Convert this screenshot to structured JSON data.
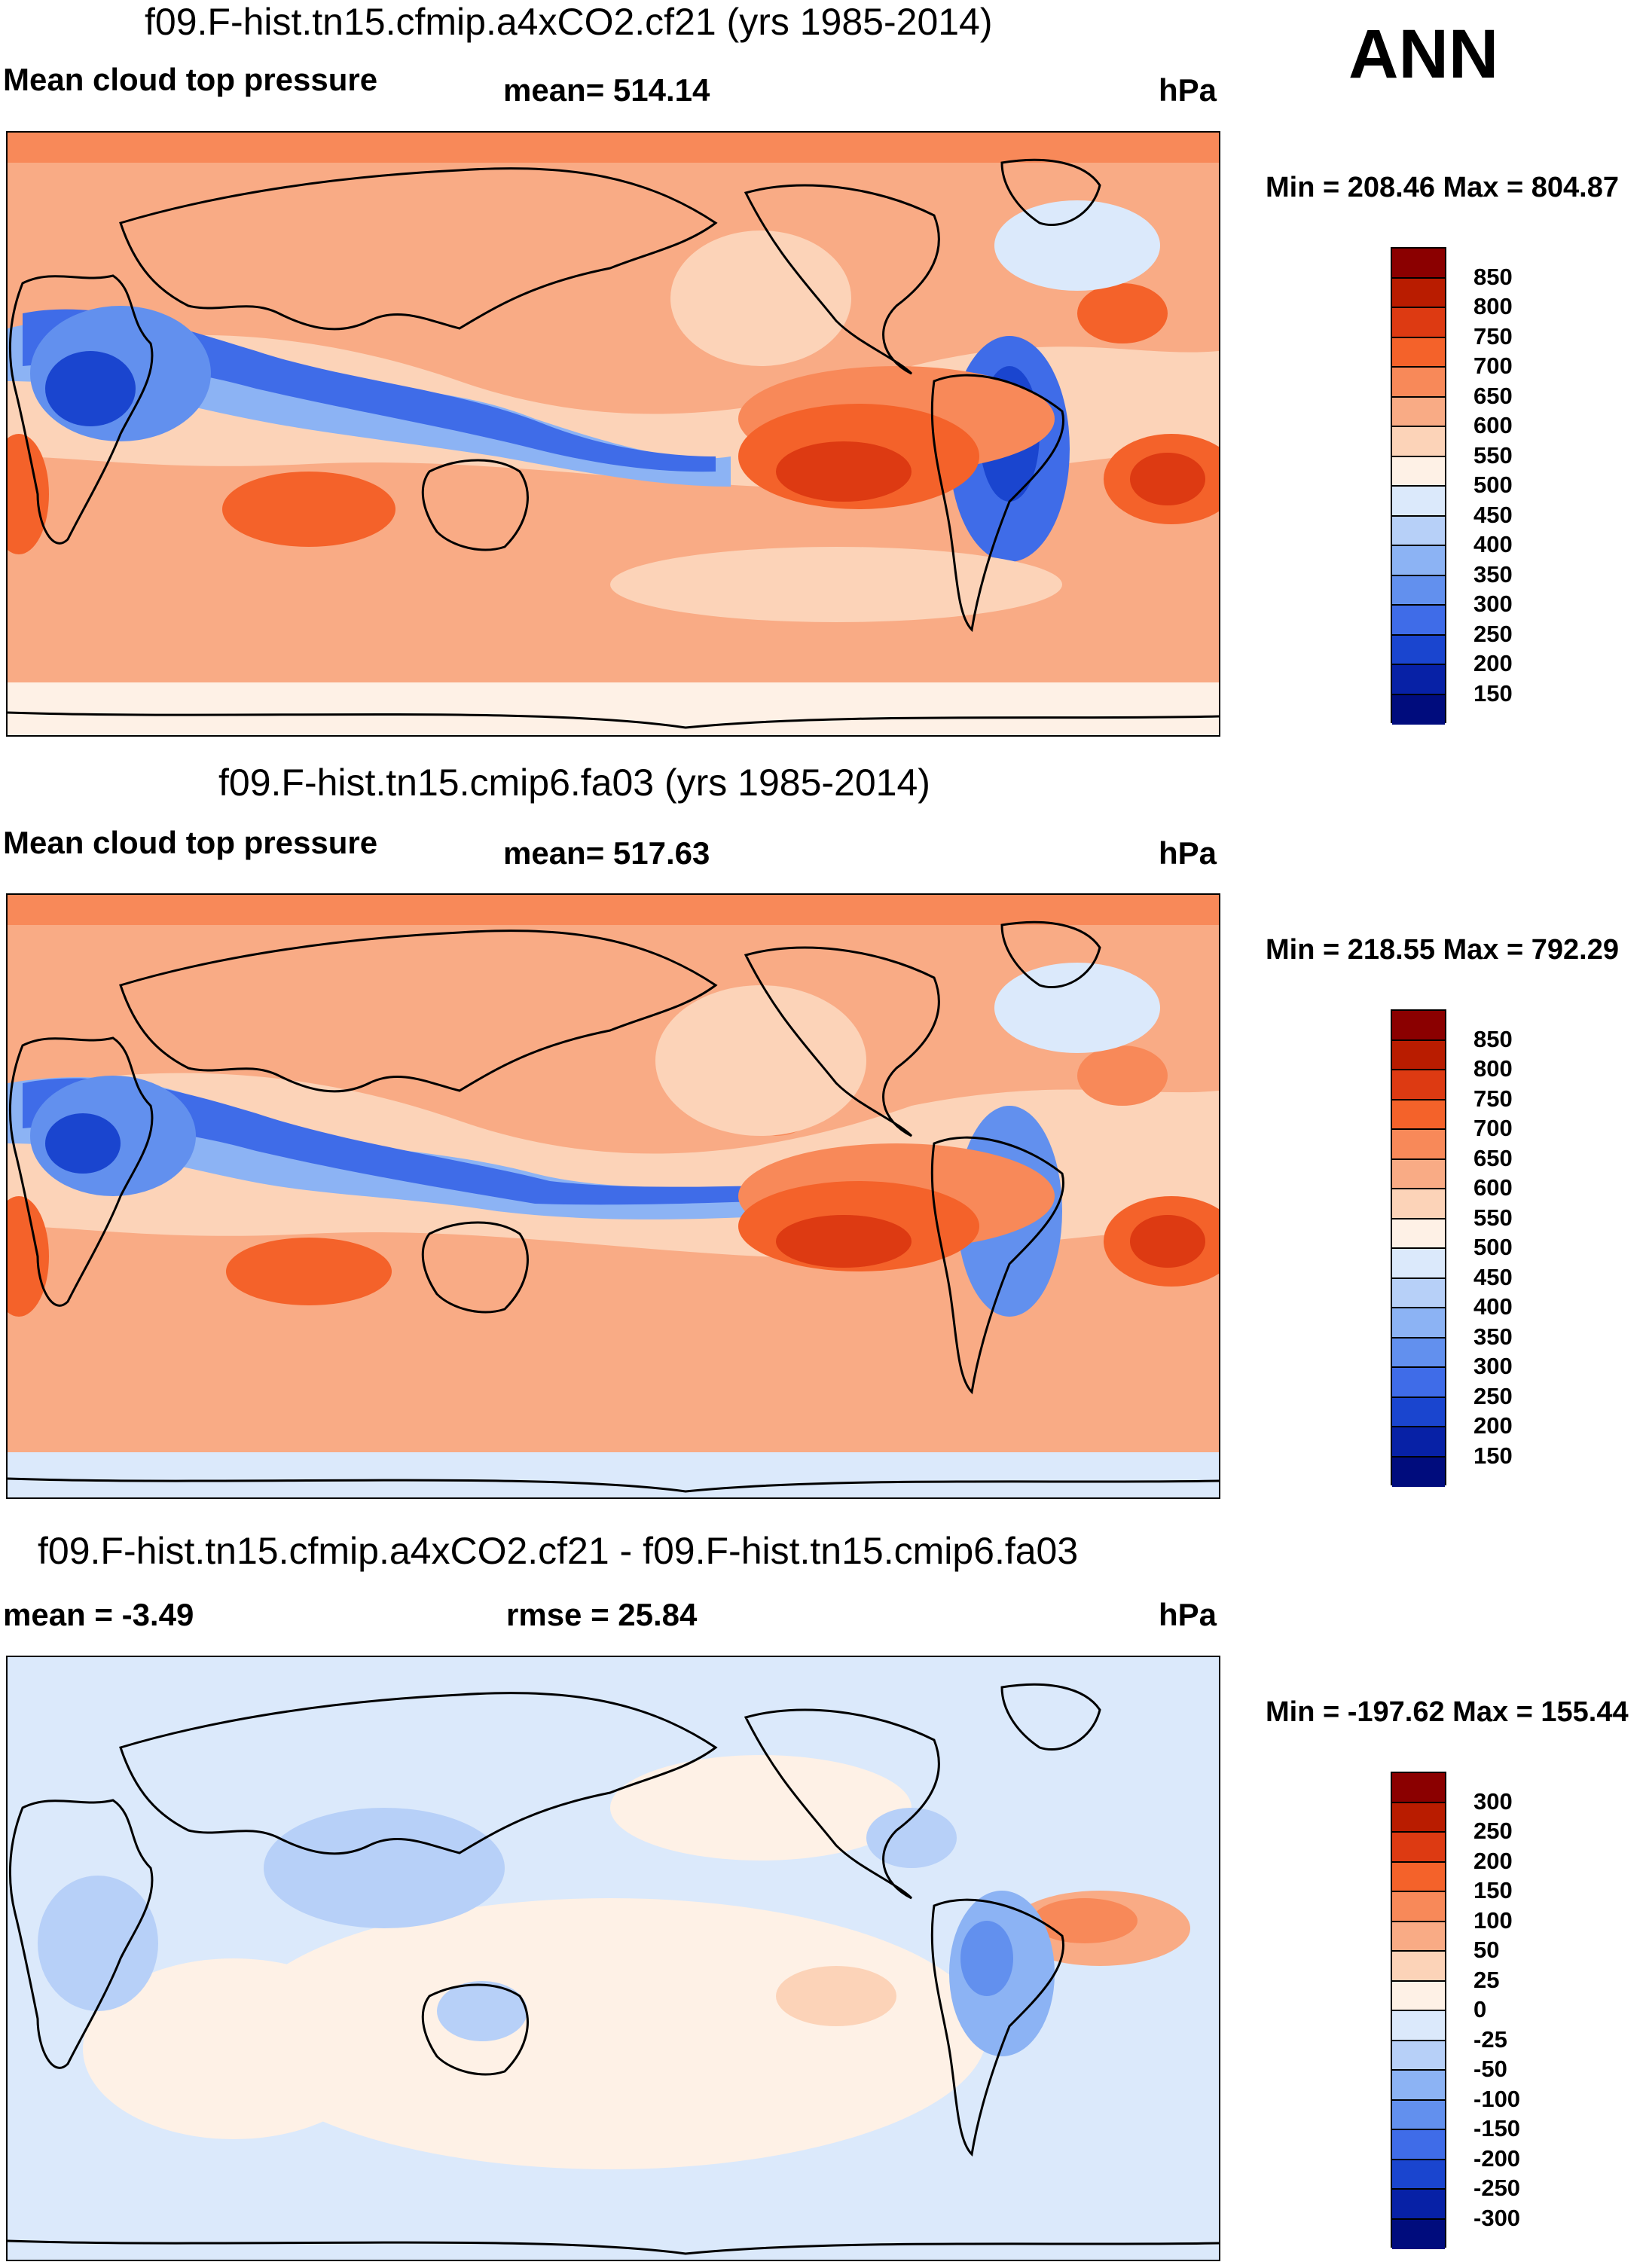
{
  "season": "ANN",
  "chart_data": [
    {
      "type": "heatmap",
      "title": "f09.F-hist.tn15.cfmip.a4xCO2.cf21 (yrs 1985-2014)",
      "variable": "Mean cloud top pressure",
      "stat_text": "mean= 514.14",
      "mean": 514.14,
      "units": "hPa",
      "minmax_text": "Min = 208.46 Max = 804.87",
      "min": 208.46,
      "max": 804.87,
      "levels": [
        "850",
        "800",
        "750",
        "700",
        "650",
        "600",
        "550",
        "500",
        "450",
        "400",
        "350",
        "300",
        "250",
        "200",
        "150"
      ],
      "colors": [
        "#8b0000",
        "#b91c00",
        "#dd3a12",
        "#f4622a",
        "#f88959",
        "#f9ab85",
        "#fcd3b8",
        "#fef1e6",
        "#dbe9fb",
        "#b7d0f8",
        "#8cb3f4",
        "#6290ee",
        "#3f6ce8",
        "#1a45cf",
        "#0721a6",
        "#000c7d"
      ]
    },
    {
      "type": "heatmap",
      "title": "f09.F-hist.tn15.cmip6.fa03 (yrs 1985-2014)",
      "variable": "Mean cloud top pressure",
      "stat_text": "mean= 517.63",
      "mean": 517.63,
      "units": "hPa",
      "minmax_text": "Min = 218.55 Max = 792.29",
      "min": 218.55,
      "max": 792.29,
      "levels": [
        "850",
        "800",
        "750",
        "700",
        "650",
        "600",
        "550",
        "500",
        "450",
        "400",
        "350",
        "300",
        "250",
        "200",
        "150"
      ],
      "colors": [
        "#8b0000",
        "#b91c00",
        "#dd3a12",
        "#f4622a",
        "#f88959",
        "#f9ab85",
        "#fcd3b8",
        "#fef1e6",
        "#dbe9fb",
        "#b7d0f8",
        "#8cb3f4",
        "#6290ee",
        "#3f6ce8",
        "#1a45cf",
        "#0721a6",
        "#000c7d"
      ]
    },
    {
      "type": "heatmap",
      "title": "f09.F-hist.tn15.cfmip.a4xCO2.cf21 - f09.F-hist.tn15.cmip6.fa03",
      "stat_text": "mean =  -3.49",
      "mean": -3.49,
      "stat2_text": "rmse =  25.84",
      "rmse": 25.84,
      "units": "hPa",
      "minmax_text": "Min = -197.62 Max = 155.44",
      "min": -197.62,
      "max": 155.44,
      "levels": [
        "300",
        "250",
        "200",
        "150",
        "100",
        "50",
        "25",
        "0",
        "-25",
        "-50",
        "-100",
        "-150",
        "-200",
        "-250",
        "-300"
      ],
      "colors": [
        "#8b0000",
        "#b91c00",
        "#dd3a12",
        "#f4622a",
        "#f88959",
        "#f9ab85",
        "#fcd3b8",
        "#fef1e6",
        "#dbe9fb",
        "#b7d0f8",
        "#8cb3f4",
        "#6290ee",
        "#3f6ce8",
        "#1a45cf",
        "#0721a6",
        "#000c7d"
      ]
    }
  ]
}
